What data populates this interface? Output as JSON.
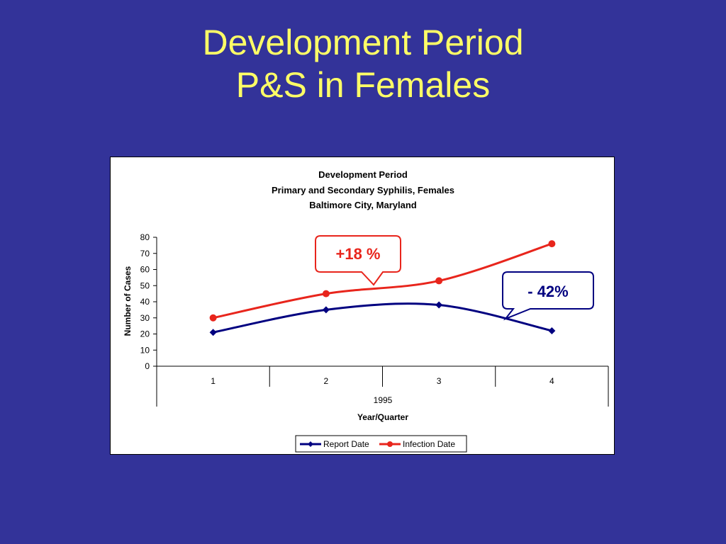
{
  "slide": {
    "title_line1": "Development Period",
    "title_line2": "P&S in Females"
  },
  "colors": {
    "background": "#333399",
    "title": "#FFFF66",
    "report_series": "#000080",
    "infection_series": "#E8251C"
  },
  "chart_data": {
    "type": "line",
    "title_lines": [
      "Development Period",
      "Primary and Secondary Syphilis, Females",
      "Baltimore City, Maryland"
    ],
    "categories": [
      "1",
      "2",
      "3",
      "4"
    ],
    "group_label": "1995",
    "xlabel": "Year/Quarter",
    "ylabel": "Number of Cases",
    "ylim": [
      0,
      80
    ],
    "yticks": [
      0,
      10,
      20,
      30,
      40,
      50,
      60,
      70,
      80
    ],
    "grid": false,
    "legend": "bottom",
    "series": [
      {
        "name": "Report Date",
        "values": [
          21,
          35,
          38,
          22
        ],
        "color": "#000080",
        "marker": "diamond"
      },
      {
        "name": "Infection Date",
        "values": [
          30,
          45,
          53,
          76
        ],
        "color": "#E8251C",
        "marker": "circle"
      }
    ],
    "annotations": [
      {
        "text": "+18 %",
        "series": "Infection Date"
      },
      {
        "text": "- 42%",
        "series": "Report Date"
      }
    ]
  }
}
